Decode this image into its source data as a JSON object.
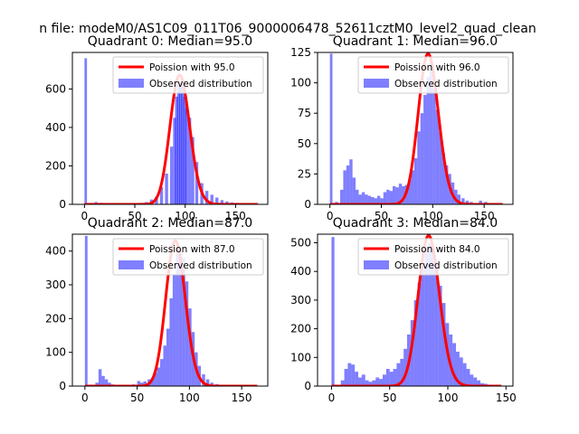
{
  "suptitle": "n file: modeM0/AS1C09_011T06_9000006478_52611cztM0_level2_quad_clean",
  "colors": {
    "fit_line": "#ff0000",
    "hist": "#0000ff",
    "hist_opacity": 0.5
  },
  "legend": {
    "fit_prefix": "Poission with ",
    "hist_label": "Observed distribution"
  },
  "chart_data": [
    {
      "type": "histogram+line",
      "title": "Quadrant 0: Median=95.0",
      "median": 95.0,
      "fit_label": "Poission with 95.0",
      "xlim": [
        -12,
        182
      ],
      "ylim": [
        0,
        790
      ],
      "xticks": [
        0,
        50,
        100,
        150
      ],
      "yticks": [
        0,
        200,
        400,
        600
      ],
      "legend_position": "upper-right",
      "hist_bins": [
        [
          0,
          760
        ],
        [
          10,
          12
        ],
        [
          15,
          8
        ],
        [
          20,
          5
        ],
        [
          25,
          4
        ],
        [
          30,
          4
        ],
        [
          35,
          5
        ],
        [
          40,
          6
        ],
        [
          45,
          5
        ],
        [
          50,
          7
        ],
        [
          55,
          8
        ],
        [
          60,
          12
        ],
        [
          65,
          25
        ],
        [
          70,
          40
        ],
        [
          75,
          90
        ],
        [
          80,
          160
        ],
        [
          85,
          300
        ],
        [
          88,
          450
        ],
        [
          90,
          560
        ],
        [
          92,
          620
        ],
        [
          94,
          640
        ],
        [
          96,
          610
        ],
        [
          98,
          560
        ],
        [
          100,
          500
        ],
        [
          103,
          450
        ],
        [
          106,
          350
        ],
        [
          110,
          220
        ],
        [
          115,
          110
        ],
        [
          120,
          70
        ],
        [
          125,
          50
        ],
        [
          130,
          35
        ],
        [
          135,
          22
        ],
        [
          140,
          15
        ],
        [
          145,
          10
        ],
        [
          150,
          8
        ],
        [
          155,
          6
        ],
        [
          160,
          5
        ],
        [
          165,
          4
        ],
        [
          170,
          3
        ]
      ]
    },
    {
      "type": "histogram+line",
      "title": "Quadrant 1: Median=96.0",
      "median": 96.0,
      "fit_label": "Poission with 96.0",
      "xlim": [
        -12,
        178
      ],
      "ylim": [
        0,
        125
      ],
      "xticks": [
        0,
        50,
        100,
        150
      ],
      "yticks": [
        0,
        25,
        50,
        75,
        100,
        125
      ],
      "legend_position": "upper-right",
      "hist_bins": [
        [
          0,
          124
        ],
        [
          5,
          2
        ],
        [
          10,
          12
        ],
        [
          13,
          28
        ],
        [
          16,
          32
        ],
        [
          19,
          37
        ],
        [
          22,
          22
        ],
        [
          25,
          12
        ],
        [
          28,
          8
        ],
        [
          31,
          10
        ],
        [
          34,
          8
        ],
        [
          37,
          7
        ],
        [
          40,
          6
        ],
        [
          43,
          5
        ],
        [
          46,
          7
        ],
        [
          49,
          5
        ],
        [
          52,
          10
        ],
        [
          55,
          12
        ],
        [
          58,
          11
        ],
        [
          61,
          15
        ],
        [
          64,
          14
        ],
        [
          67,
          17
        ],
        [
          70,
          15
        ],
        [
          73,
          16
        ],
        [
          76,
          20
        ],
        [
          79,
          28
        ],
        [
          82,
          38
        ],
        [
          85,
          60
        ],
        [
          88,
          75
        ],
        [
          91,
          90
        ],
        [
          94,
          105
        ],
        [
          97,
          118
        ],
        [
          100,
          95
        ],
        [
          103,
          78
        ],
        [
          106,
          60
        ],
        [
          109,
          42
        ],
        [
          112,
          32
        ],
        [
          115,
          25
        ],
        [
          118,
          18
        ],
        [
          121,
          12
        ],
        [
          124,
          8
        ],
        [
          128,
          5
        ],
        [
          132,
          3
        ],
        [
          136,
          2
        ],
        [
          140,
          1
        ],
        [
          145,
          3
        ],
        [
          150,
          2
        ],
        [
          155,
          1
        ],
        [
          160,
          1
        ]
      ]
    },
    {
      "type": "histogram+line",
      "title": "Quadrant 2: Median=87.0",
      "median": 87.0,
      "fit_label": "Poission with 87.0",
      "xlim": [
        -12,
        175
      ],
      "ylim": [
        0,
        450
      ],
      "xticks": [
        0,
        50,
        100,
        150
      ],
      "yticks": [
        0,
        100,
        200,
        300,
        400
      ],
      "legend_position": "upper-right",
      "hist_bins": [
        [
          0,
          445
        ],
        [
          10,
          10
        ],
        [
          13,
          50
        ],
        [
          16,
          30
        ],
        [
          19,
          20
        ],
        [
          22,
          10
        ],
        [
          25,
          5
        ],
        [
          30,
          4
        ],
        [
          35,
          3
        ],
        [
          40,
          3
        ],
        [
          45,
          5
        ],
        [
          50,
          15
        ],
        [
          53,
          10
        ],
        [
          56,
          14
        ],
        [
          60,
          20
        ],
        [
          63,
          22
        ],
        [
          66,
          40
        ],
        [
          69,
          55
        ],
        [
          72,
          80
        ],
        [
          75,
          120
        ],
        [
          78,
          170
        ],
        [
          81,
          260
        ],
        [
          84,
          330
        ],
        [
          87,
          410
        ],
        [
          90,
          400
        ],
        [
          93,
          380
        ],
        [
          96,
          310
        ],
        [
          99,
          230
        ],
        [
          102,
          160
        ],
        [
          105,
          100
        ],
        [
          108,
          60
        ],
        [
          112,
          35
        ],
        [
          116,
          20
        ],
        [
          120,
          10
        ],
        [
          125,
          6
        ],
        [
          130,
          4
        ],
        [
          135,
          3
        ],
        [
          140,
          2
        ],
        [
          145,
          1
        ],
        [
          150,
          1
        ]
      ]
    },
    {
      "type": "histogram+line",
      "title": "Quadrant 3: Median=84.0",
      "median": 84.0,
      "fit_label": "Poission with 84.0",
      "xlim": [
        -12,
        156
      ],
      "ylim": [
        0,
        530
      ],
      "xticks": [
        0,
        50,
        100,
        150
      ],
      "yticks": [
        0,
        100,
        200,
        300,
        400,
        500
      ],
      "legend_position": "upper-right",
      "hist_bins": [
        [
          0,
          520
        ],
        [
          8,
          20
        ],
        [
          11,
          60
        ],
        [
          14,
          80
        ],
        [
          17,
          75
        ],
        [
          20,
          50
        ],
        [
          23,
          30
        ],
        [
          26,
          40
        ],
        [
          29,
          20
        ],
        [
          32,
          15
        ],
        [
          35,
          20
        ],
        [
          38,
          30
        ],
        [
          41,
          25
        ],
        [
          44,
          40
        ],
        [
          47,
          60
        ],
        [
          50,
          50
        ],
        [
          53,
          60
        ],
        [
          56,
          80
        ],
        [
          59,
          95
        ],
        [
          62,
          130
        ],
        [
          65,
          180
        ],
        [
          68,
          230
        ],
        [
          71,
          300
        ],
        [
          74,
          360
        ],
        [
          77,
          420
        ],
        [
          80,
          480
        ],
        [
          83,
          500
        ],
        [
          86,
          470
        ],
        [
          89,
          420
        ],
        [
          92,
          350
        ],
        [
          95,
          290
        ],
        [
          98,
          220
        ],
        [
          101,
          180
        ],
        [
          104,
          150
        ],
        [
          107,
          120
        ],
        [
          110,
          100
        ],
        [
          113,
          80
        ],
        [
          116,
          60
        ],
        [
          119,
          40
        ],
        [
          122,
          30
        ],
        [
          125,
          20
        ],
        [
          128,
          10
        ],
        [
          131,
          8
        ],
        [
          134,
          5
        ],
        [
          137,
          3
        ],
        [
          140,
          2
        ]
      ]
    }
  ]
}
